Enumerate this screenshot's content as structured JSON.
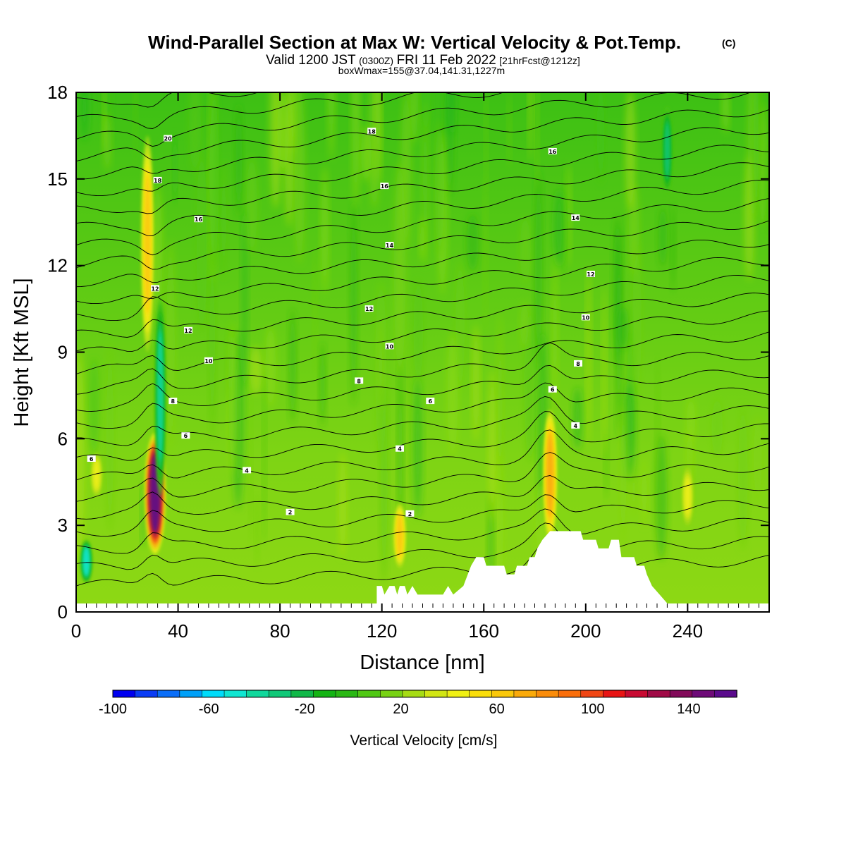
{
  "chart_data": {
    "type": "heatmap",
    "title": "Wind-Parallel Section at Max W: Vertical Velocity & Pot.Temp.",
    "title_mark": "(C)",
    "subtitle": {
      "valid_prefix": "Valid 1200 JST",
      "zulu": "(0300Z)",
      "date": "FRI 11 Feb 2022",
      "forecast": "[21hrFcst@1212z]"
    },
    "subtitle2": "boxWmax=155@37.04,141.31,1227m",
    "xlabel": "Distance [nm]",
    "ylabel": "Height [Kft MSL]",
    "xlim": [
      0,
      272
    ],
    "ylim": [
      0,
      18
    ],
    "x_ticks": [
      "0",
      "40",
      "80",
      "120",
      "160",
      "200",
      "240"
    ],
    "x_tick_values": [
      0,
      40,
      80,
      120,
      160,
      200,
      240
    ],
    "y_ticks": [
      "0",
      "3",
      "6",
      "9",
      "12",
      "15",
      "18"
    ],
    "y_tick_values": [
      0,
      3,
      6,
      9,
      12,
      15,
      18
    ],
    "colorbar": {
      "title": "Vertical Velocity [cm/s]",
      "labels": [
        "-100",
        "-60",
        "-20",
        "20",
        "60",
        "100",
        "140"
      ],
      "label_values": [
        -100,
        -60,
        -20,
        20,
        60,
        100,
        140
      ],
      "range": [
        -100,
        160
      ],
      "colors": [
        "#0000f0",
        "#0a3cf5",
        "#0a6ef8",
        "#00a0f8",
        "#00dcfa",
        "#10e6d2",
        "#10d89c",
        "#10c878",
        "#10b848",
        "#14b414",
        "#2ab814",
        "#50c814",
        "#78d214",
        "#a6dc14",
        "#d2e614",
        "#f0f014",
        "#fade0a",
        "#fac80a",
        "#faaa0a",
        "#fa8c0a",
        "#fa6e0a",
        "#f04614",
        "#e81414",
        "#c80a32",
        "#a00a46",
        "#820a5a",
        "#6e0a78",
        "#5a0a8c"
      ]
    },
    "vertical_velocity_maxima": [
      {
        "x": 31,
        "y_bottom": 2.0,
        "y_top": 6.2,
        "w": 155
      },
      {
        "x": 28,
        "y_bottom": 9.0,
        "y_top": 16.5,
        "w": 60
      },
      {
        "x": 186,
        "y_bottom": 2.5,
        "y_top": 7.0,
        "w": 70
      },
      {
        "x": 127,
        "y_bottom": 1.5,
        "y_top": 3.8,
        "w": 60
      },
      {
        "x": 8,
        "y_bottom": 4.0,
        "y_top": 5.5,
        "w": 40
      },
      {
        "x": 240,
        "y_bottom": 3.0,
        "y_top": 5.0,
        "w": 40
      }
    ],
    "vertical_velocity_minima": [
      {
        "x": 33,
        "y_bottom": 4.0,
        "y_top": 11.0,
        "w": -40
      },
      {
        "x": 4,
        "y_bottom": 1.0,
        "y_top": 2.5,
        "w": -50
      },
      {
        "x": 232,
        "y_bottom": 14.5,
        "y_top": 17.5,
        "w": -30
      }
    ],
    "terrain": [
      [
        118,
        0.9
      ],
      [
        120,
        0.9
      ],
      [
        121,
        0.6
      ],
      [
        123,
        0.9
      ],
      [
        125,
        0.9
      ],
      [
        126,
        0.6
      ],
      [
        127,
        0.9
      ],
      [
        129,
        0.9
      ],
      [
        130,
        0.6
      ],
      [
        132,
        0.9
      ],
      [
        134,
        0.6
      ],
      [
        144,
        0.6
      ],
      [
        146,
        0.9
      ],
      [
        148,
        0.6
      ],
      [
        152,
        0.9
      ],
      [
        155,
        1.6
      ],
      [
        157,
        1.9
      ],
      [
        160,
        1.9
      ],
      [
        161,
        1.6
      ],
      [
        168,
        1.6
      ],
      [
        169,
        1.3
      ],
      [
        172,
        1.3
      ],
      [
        173,
        1.6
      ],
      [
        177,
        1.6
      ],
      [
        178,
        1.9
      ],
      [
        180,
        1.9
      ],
      [
        181,
        2.2
      ],
      [
        183,
        2.5
      ],
      [
        186,
        2.8
      ],
      [
        198,
        2.8
      ],
      [
        199,
        2.5
      ],
      [
        204,
        2.5
      ],
      [
        205,
        2.2
      ],
      [
        209,
        2.2
      ],
      [
        210,
        2.5
      ],
      [
        213,
        2.5
      ],
      [
        214,
        1.9
      ],
      [
        219,
        1.9
      ],
      [
        220,
        1.6
      ],
      [
        223,
        1.6
      ],
      [
        224,
        1.3
      ],
      [
        226,
        0.9
      ],
      [
        229,
        0.6
      ],
      [
        232,
        0.3
      ]
    ],
    "isentrope_values": [
      2,
      4,
      6,
      8,
      10,
      12,
      14,
      16,
      18,
      20
    ],
    "isentrope_labels": [
      {
        "text": "6",
        "x": 6,
        "y": 5.3
      },
      {
        "text": "2",
        "x": 84,
        "y": 3.45
      },
      {
        "text": "2",
        "x": 131,
        "y": 3.4
      },
      {
        "text": "4",
        "x": 67,
        "y": 4.9
      },
      {
        "text": "4",
        "x": 127,
        "y": 5.65
      },
      {
        "text": "4",
        "x": 196,
        "y": 6.45
      },
      {
        "text": "6",
        "x": 43,
        "y": 6.1
      },
      {
        "text": "6",
        "x": 139,
        "y": 7.3
      },
      {
        "text": "6",
        "x": 187,
        "y": 7.7
      },
      {
        "text": "8",
        "x": 38,
        "y": 7.3
      },
      {
        "text": "8",
        "x": 111,
        "y": 8.0
      },
      {
        "text": "8",
        "x": 197,
        "y": 8.6
      },
      {
        "text": "10",
        "x": 52,
        "y": 8.7
      },
      {
        "text": "10",
        "x": 123,
        "y": 9.2
      },
      {
        "text": "10",
        "x": 200,
        "y": 10.2
      },
      {
        "text": "12",
        "x": 44,
        "y": 9.75
      },
      {
        "text": "12",
        "x": 115,
        "y": 10.5
      },
      {
        "text": "12",
        "x": 202,
        "y": 11.7
      },
      {
        "text": "12",
        "x": 31,
        "y": 11.2
      },
      {
        "text": "14",
        "x": 123,
        "y": 12.7
      },
      {
        "text": "14",
        "x": 196,
        "y": 13.65
      },
      {
        "text": "16",
        "x": 48,
        "y": 13.6
      },
      {
        "text": "16",
        "x": 121,
        "y": 14.75
      },
      {
        "text": "16",
        "x": 187,
        "y": 15.95
      },
      {
        "text": "18",
        "x": 32,
        "y": 14.95
      },
      {
        "text": "18",
        "x": 116,
        "y": 16.65
      },
      {
        "text": "20",
        "x": 36,
        "y": 16.4
      }
    ]
  }
}
